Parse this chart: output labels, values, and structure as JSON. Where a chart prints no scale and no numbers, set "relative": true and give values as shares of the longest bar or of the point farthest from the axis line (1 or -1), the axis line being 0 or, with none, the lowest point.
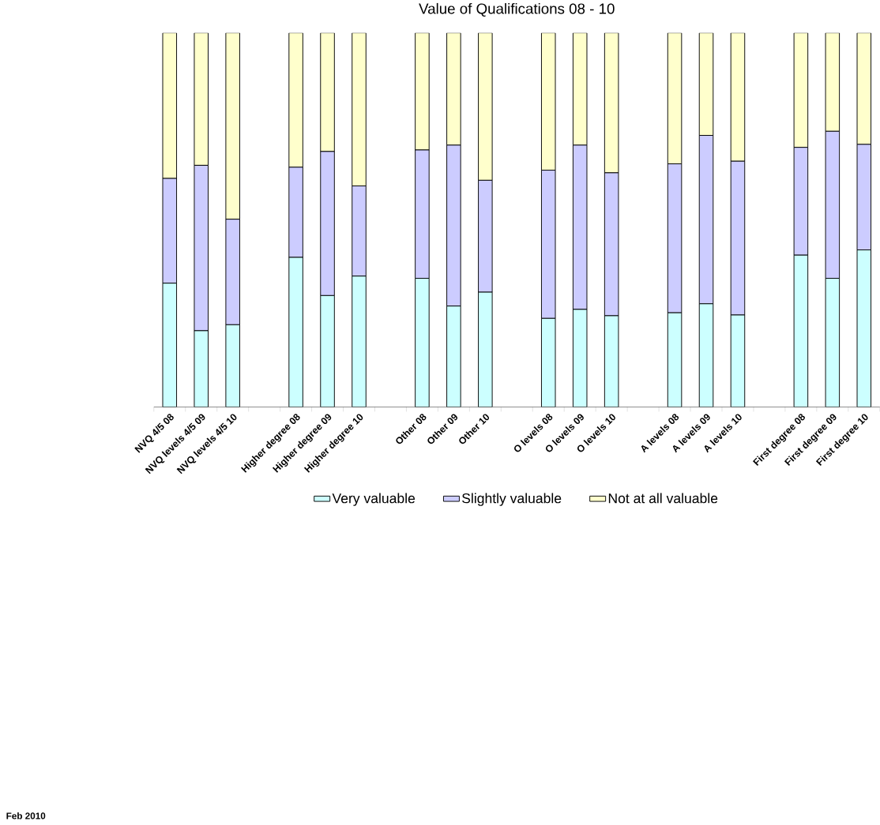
{
  "chart_data": {
    "type": "bar",
    "title": "Value of Qualifications 08 - 10",
    "stacked": true,
    "relative": true,
    "legend": "bottom",
    "categories": [
      "NVQ 4/5 08",
      "NVQ levels 4/5 09",
      "NVQ levels 4/5 10",
      null,
      "Higher degree 08",
      "Higher degree 09",
      "Higher degree 10",
      null,
      "Other 08",
      "Other 09",
      "Other 10",
      null,
      "O levels 08",
      "O levels 09",
      "O levels 10",
      null,
      "A levels 08",
      "A levels 09",
      "A levels 10",
      null,
      "First degree 08",
      "First degree 09",
      "First degree 10"
    ],
    "series": [
      {
        "name": "Very valuable",
        "color": "#ccffff",
        "values": [
          0.331,
          0.204,
          0.22,
          null,
          0.4,
          0.298,
          0.35,
          null,
          0.344,
          0.27,
          0.307,
          null,
          0.237,
          0.261,
          0.244,
          null,
          0.252,
          0.276,
          0.246,
          null,
          0.406,
          0.344,
          0.42
        ]
      },
      {
        "name": "Slightly valuable",
        "color": "#ccccff",
        "values": [
          0.28,
          0.442,
          0.282,
          null,
          0.241,
          0.385,
          0.241,
          null,
          0.343,
          0.43,
          0.299,
          null,
          0.396,
          0.439,
          0.382,
          null,
          0.398,
          0.45,
          0.411,
          null,
          0.288,
          0.393,
          0.282
        ]
      },
      {
        "name": "Not at all valuable",
        "color": "#ffffcc",
        "values": [
          0.389,
          0.354,
          0.498,
          null,
          0.359,
          0.317,
          0.409,
          null,
          0.313,
          0.3,
          0.394,
          null,
          0.367,
          0.3,
          0.374,
          null,
          0.35,
          0.274,
          0.343,
          null,
          0.306,
          0.263,
          0.298
        ]
      }
    ],
    "annotations": [
      "Feb 2010"
    ]
  }
}
